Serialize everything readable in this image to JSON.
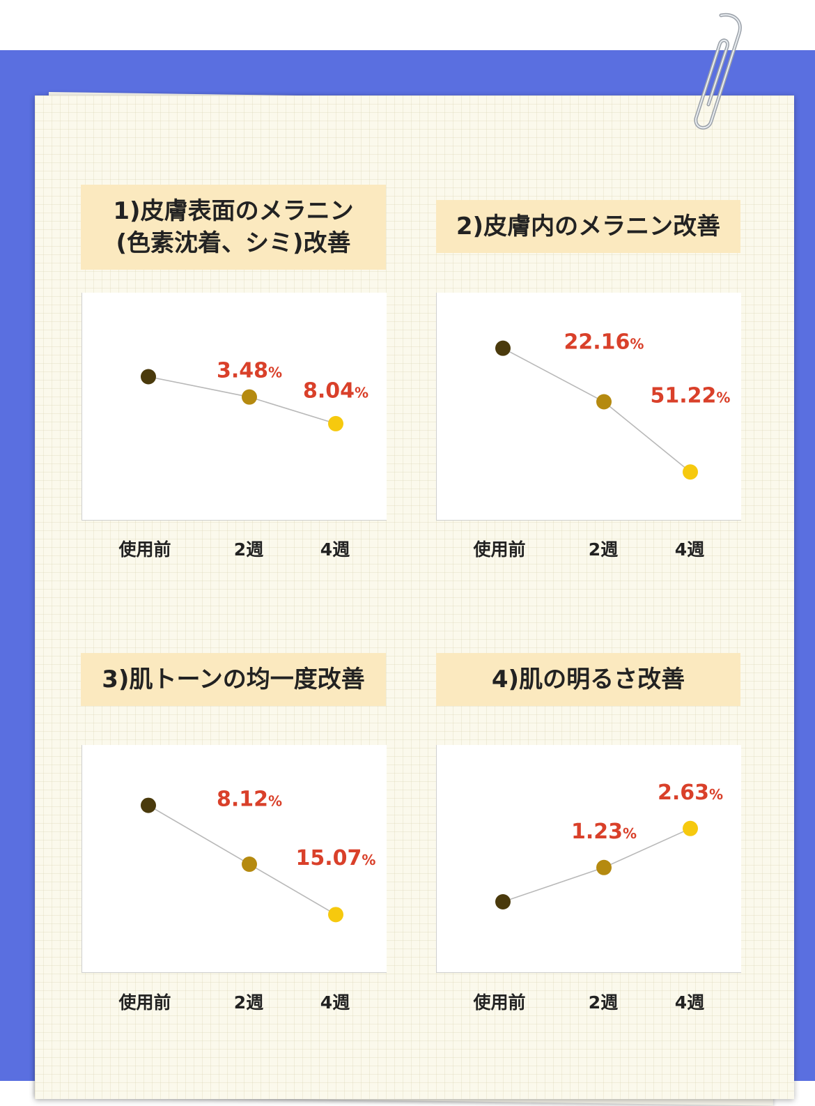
{
  "colors": {
    "background": "#5a6fe0",
    "title_bg": "#fbe9bf",
    "value_label": "#d9402a",
    "line": "#b8b8b8",
    "point_before": "#4a3a0c",
    "point_2w": "#b58a10",
    "point_4w": "#f6c90e"
  },
  "chart_data": [
    {
      "type": "line",
      "title_lines": [
        "1)皮膚表面のメラニン",
        "(色素沈着、シミ)改善"
      ],
      "categories": [
        "使用前",
        "2週",
        "4週"
      ],
      "values": [
        0,
        -3.48,
        -8.04
      ],
      "labels": [
        null,
        "3.48",
        "8.04"
      ],
      "unit": "%",
      "ylim": [
        -22,
        9
      ]
    },
    {
      "type": "line",
      "title_lines": [
        "2)皮膚内のメラニン改善"
      ],
      "categories": [
        "使用前",
        "2週",
        "4週"
      ],
      "values": [
        0,
        -22.16,
        -51.22
      ],
      "labels": [
        null,
        "22.16",
        "51.22"
      ],
      "unit": "%",
      "ylim": [
        -65,
        10
      ]
    },
    {
      "type": "line",
      "title_lines": [
        "3)肌トーンの均一度改善"
      ],
      "categories": [
        "使用前",
        "2週",
        "4週"
      ],
      "values": [
        0,
        -8.12,
        -15.07
      ],
      "labels": [
        null,
        "8.12",
        "15.07"
      ],
      "unit": "%",
      "ylim": [
        -21,
        4
      ]
    },
    {
      "type": "line",
      "title_lines": [
        "4)肌の明るさ改善"
      ],
      "categories": [
        "使用前",
        "2週",
        "4週"
      ],
      "values": [
        0,
        1.23,
        2.63
      ],
      "labels": [
        null,
        "1.23",
        "2.63"
      ],
      "unit": "%",
      "ylim": [
        -2,
        4.5
      ]
    }
  ]
}
